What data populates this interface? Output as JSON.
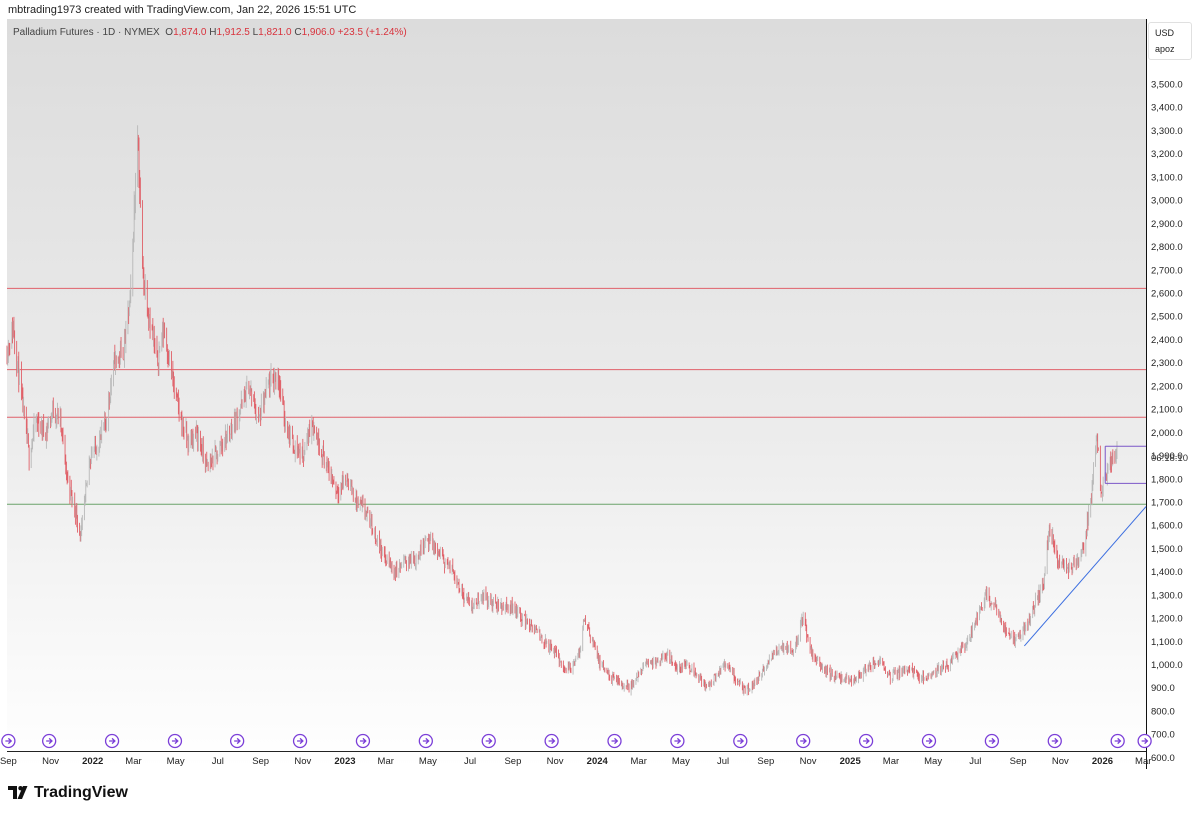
{
  "header": {
    "attribution": "mbtrading1973 created with TradingView.com, Jan 22, 2026 15:51 UTC"
  },
  "legend": {
    "symbol": "Palladium Futures · 1D · NYMEX",
    "o_label": "O",
    "o_value": "1,874.0",
    "h_label": "H",
    "h_value": "1,912.5",
    "l_label": "L",
    "l_value": "1,821.0",
    "c_label": "C",
    "c_value": "1,906.0",
    "change": "+23.5 (+1.24%)"
  },
  "price_scale": {
    "currency": "USD",
    "unit": "apoz",
    "countdown": "06:18:10"
  },
  "brand": {
    "name": "TradingView",
    "logo_icon": "tradingview-logo-icon"
  },
  "colors": {
    "candle": "#e06068",
    "resistance": "#e0606a",
    "support": "#6aa36a",
    "trendline": "#3b6ee0",
    "range": "#7b57c8",
    "event": "#7b3fd8"
  },
  "chart_data": {
    "type": "line",
    "title": "Palladium Futures · 1D · NYMEX",
    "ylim": [
      550,
      3780
    ],
    "y_ticks": [
      600,
      700,
      800,
      900,
      1000,
      1100,
      1200,
      1300,
      1400,
      1500,
      1600,
      1700,
      1800,
      1900,
      2000,
      2100,
      2200,
      2300,
      2400,
      2500,
      2600,
      2700,
      2800,
      2900,
      3000,
      3100,
      3200,
      3300,
      3400,
      3500
    ],
    "y_tick_labels": [
      "600.0",
      "700.0",
      "800.0",
      "900.0",
      "1,000.0",
      "1,100.0",
      "1,200.0",
      "1,300.0",
      "1,400.0",
      "1,500.0",
      "1,600.0",
      "1,700.0",
      "1,800.0",
      "1,900.0",
      "2,000.0",
      "2,100.0",
      "2,200.0",
      "2,300.0",
      "2,400.0",
      "2,500.0",
      "2,600.0",
      "2,700.0",
      "2,800.0",
      "2,900.0",
      "3,000.0",
      "3,100.0",
      "3,200.0",
      "3,300.0",
      "3,400.0",
      "3,500.0"
    ],
    "x_range": [
      "2021-08-30",
      "2026-03-05"
    ],
    "x_ticks": [
      {
        "date": "2021-09-01",
        "label": "Sep",
        "bold": false
      },
      {
        "date": "2021-11-01",
        "label": "Nov",
        "bold": false
      },
      {
        "date": "2022-01-01",
        "label": "2022",
        "bold": true
      },
      {
        "date": "2022-03-01",
        "label": "Mar",
        "bold": false
      },
      {
        "date": "2022-05-01",
        "label": "May",
        "bold": false
      },
      {
        "date": "2022-07-01",
        "label": "Jul",
        "bold": false
      },
      {
        "date": "2022-09-01",
        "label": "Sep",
        "bold": false
      },
      {
        "date": "2022-11-01",
        "label": "Nov",
        "bold": false
      },
      {
        "date": "2023-01-01",
        "label": "2023",
        "bold": true
      },
      {
        "date": "2023-03-01",
        "label": "Mar",
        "bold": false
      },
      {
        "date": "2023-05-01",
        "label": "May",
        "bold": false
      },
      {
        "date": "2023-07-01",
        "label": "Jul",
        "bold": false
      },
      {
        "date": "2023-09-01",
        "label": "Sep",
        "bold": false
      },
      {
        "date": "2023-11-01",
        "label": "Nov",
        "bold": false
      },
      {
        "date": "2024-01-01",
        "label": "2024",
        "bold": true
      },
      {
        "date": "2024-03-01",
        "label": "Mar",
        "bold": false
      },
      {
        "date": "2024-05-01",
        "label": "May",
        "bold": false
      },
      {
        "date": "2024-07-01",
        "label": "Jul",
        "bold": false
      },
      {
        "date": "2024-09-01",
        "label": "Sep",
        "bold": false
      },
      {
        "date": "2024-11-01",
        "label": "Nov",
        "bold": false
      },
      {
        "date": "2025-01-01",
        "label": "2025",
        "bold": true
      },
      {
        "date": "2025-03-01",
        "label": "Mar",
        "bold": false
      },
      {
        "date": "2025-05-01",
        "label": "May",
        "bold": false
      },
      {
        "date": "2025-07-01",
        "label": "Jul",
        "bold": false
      },
      {
        "date": "2025-09-01",
        "label": "Sep",
        "bold": false
      },
      {
        "date": "2025-11-01",
        "label": "Nov",
        "bold": false
      },
      {
        "date": "2026-01-01",
        "label": "2026",
        "bold": true
      },
      {
        "date": "2026-03-01",
        "label": "Mar",
        "bold": false
      }
    ],
    "price_path": [
      {
        "date": "2021-08-30",
        "value": 2350
      },
      {
        "date": "2021-09-08",
        "value": 2450
      },
      {
        "date": "2021-09-20",
        "value": 2150
      },
      {
        "date": "2021-10-01",
        "value": 1900
      },
      {
        "date": "2021-10-11",
        "value": 2050
      },
      {
        "date": "2021-10-25",
        "value": 2000
      },
      {
        "date": "2021-11-05",
        "value": 2100
      },
      {
        "date": "2021-11-15",
        "value": 2050
      },
      {
        "date": "2021-11-25",
        "value": 1800
      },
      {
        "date": "2021-12-08",
        "value": 1650
      },
      {
        "date": "2021-12-15",
        "value": 1550
      },
      {
        "date": "2021-12-28",
        "value": 1900
      },
      {
        "date": "2022-01-10",
        "value": 1950
      },
      {
        "date": "2022-01-20",
        "value": 2050
      },
      {
        "date": "2022-02-01",
        "value": 2300
      },
      {
        "date": "2022-02-15",
        "value": 2350
      },
      {
        "date": "2022-02-25",
        "value": 2600
      },
      {
        "date": "2022-03-07",
        "value": 3300
      },
      {
        "date": "2022-03-14",
        "value": 2700
      },
      {
        "date": "2022-03-24",
        "value": 2500
      },
      {
        "date": "2022-04-04",
        "value": 2300
      },
      {
        "date": "2022-04-14",
        "value": 2450
      },
      {
        "date": "2022-04-28",
        "value": 2200
      },
      {
        "date": "2022-05-09",
        "value": 2050
      },
      {
        "date": "2022-05-20",
        "value": 1950
      },
      {
        "date": "2022-06-01",
        "value": 2000
      },
      {
        "date": "2022-06-15",
        "value": 1850
      },
      {
        "date": "2022-06-28",
        "value": 1900
      },
      {
        "date": "2022-07-07",
        "value": 1950
      },
      {
        "date": "2022-07-18",
        "value": 2000
      },
      {
        "date": "2022-08-02",
        "value": 2100
      },
      {
        "date": "2022-08-15",
        "value": 2200
      },
      {
        "date": "2022-08-29",
        "value": 2050
      },
      {
        "date": "2022-09-12",
        "value": 2200
      },
      {
        "date": "2022-09-26",
        "value": 2250
      },
      {
        "date": "2022-10-06",
        "value": 2050
      },
      {
        "date": "2022-10-18",
        "value": 1950
      },
      {
        "date": "2022-11-01",
        "value": 1900
      },
      {
        "date": "2022-11-14",
        "value": 2050
      },
      {
        "date": "2022-11-25",
        "value": 1950
      },
      {
        "date": "2022-12-06",
        "value": 1850
      },
      {
        "date": "2022-12-20",
        "value": 1750
      },
      {
        "date": "2023-01-04",
        "value": 1800
      },
      {
        "date": "2023-01-18",
        "value": 1700
      },
      {
        "date": "2023-02-01",
        "value": 1650
      },
      {
        "date": "2023-02-15",
        "value": 1550
      },
      {
        "date": "2023-03-01",
        "value": 1450
      },
      {
        "date": "2023-03-15",
        "value": 1400
      },
      {
        "date": "2023-03-30",
        "value": 1450
      },
      {
        "date": "2023-04-14",
        "value": 1450
      },
      {
        "date": "2023-04-28",
        "value": 1550
      },
      {
        "date": "2023-05-10",
        "value": 1500
      },
      {
        "date": "2023-05-24",
        "value": 1450
      },
      {
        "date": "2023-06-07",
        "value": 1400
      },
      {
        "date": "2023-06-21",
        "value": 1300
      },
      {
        "date": "2023-07-05",
        "value": 1250
      },
      {
        "date": "2023-07-19",
        "value": 1300
      },
      {
        "date": "2023-08-02",
        "value": 1260
      },
      {
        "date": "2023-08-16",
        "value": 1250
      },
      {
        "date": "2023-09-01",
        "value": 1250
      },
      {
        "date": "2023-09-15",
        "value": 1200
      },
      {
        "date": "2023-10-02",
        "value": 1150
      },
      {
        "date": "2023-10-16",
        "value": 1100
      },
      {
        "date": "2023-11-01",
        "value": 1050
      },
      {
        "date": "2023-11-15",
        "value": 980
      },
      {
        "date": "2023-11-29",
        "value": 1000
      },
      {
        "date": "2023-12-06",
        "value": 1050
      },
      {
        "date": "2023-12-13",
        "value": 1200
      },
      {
        "date": "2023-12-20",
        "value": 1150
      },
      {
        "date": "2024-01-05",
        "value": 1000
      },
      {
        "date": "2024-01-19",
        "value": 950
      },
      {
        "date": "2024-02-02",
        "value": 920
      },
      {
        "date": "2024-02-16",
        "value": 900
      },
      {
        "date": "2024-03-01",
        "value": 950
      },
      {
        "date": "2024-03-15",
        "value": 1020
      },
      {
        "date": "2024-03-29",
        "value": 1000
      },
      {
        "date": "2024-04-12",
        "value": 1050
      },
      {
        "date": "2024-04-26",
        "value": 980
      },
      {
        "date": "2024-05-10",
        "value": 1000
      },
      {
        "date": "2024-05-24",
        "value": 960
      },
      {
        "date": "2024-06-07",
        "value": 900
      },
      {
        "date": "2024-06-21",
        "value": 950
      },
      {
        "date": "2024-07-05",
        "value": 1000
      },
      {
        "date": "2024-07-19",
        "value": 940
      },
      {
        "date": "2024-08-02",
        "value": 880
      },
      {
        "date": "2024-08-16",
        "value": 920
      },
      {
        "date": "2024-08-30",
        "value": 980
      },
      {
        "date": "2024-09-13",
        "value": 1050
      },
      {
        "date": "2024-09-27",
        "value": 1080
      },
      {
        "date": "2024-10-11",
        "value": 1060
      },
      {
        "date": "2024-10-25",
        "value": 1200
      },
      {
        "date": "2024-11-06",
        "value": 1050
      },
      {
        "date": "2024-11-20",
        "value": 990
      },
      {
        "date": "2024-12-04",
        "value": 960
      },
      {
        "date": "2024-12-18",
        "value": 940
      },
      {
        "date": "2025-01-03",
        "value": 930
      },
      {
        "date": "2025-01-17",
        "value": 960
      },
      {
        "date": "2025-01-31",
        "value": 990
      },
      {
        "date": "2025-02-14",
        "value": 1020
      },
      {
        "date": "2025-02-28",
        "value": 950
      },
      {
        "date": "2025-03-14",
        "value": 970
      },
      {
        "date": "2025-03-28",
        "value": 990
      },
      {
        "date": "2025-04-11",
        "value": 940
      },
      {
        "date": "2025-04-25",
        "value": 950
      },
      {
        "date": "2025-05-09",
        "value": 980
      },
      {
        "date": "2025-05-23",
        "value": 1000
      },
      {
        "date": "2025-06-06",
        "value": 1050
      },
      {
        "date": "2025-06-20",
        "value": 1100
      },
      {
        "date": "2025-07-04",
        "value": 1200
      },
      {
        "date": "2025-07-16",
        "value": 1300
      },
      {
        "date": "2025-07-30",
        "value": 1250
      },
      {
        "date": "2025-08-13",
        "value": 1150
      },
      {
        "date": "2025-08-27",
        "value": 1100
      },
      {
        "date": "2025-09-10",
        "value": 1150
      },
      {
        "date": "2025-09-24",
        "value": 1250
      },
      {
        "date": "2025-10-08",
        "value": 1350
      },
      {
        "date": "2025-10-16",
        "value": 1600
      },
      {
        "date": "2025-10-28",
        "value": 1450
      },
      {
        "date": "2025-11-11",
        "value": 1420
      },
      {
        "date": "2025-11-25",
        "value": 1430
      },
      {
        "date": "2025-12-05",
        "value": 1500
      },
      {
        "date": "2025-12-15",
        "value": 1700
      },
      {
        "date": "2025-12-24",
        "value": 2000
      },
      {
        "date": "2025-12-29",
        "value": 1750
      },
      {
        "date": "2026-01-05",
        "value": 1800
      },
      {
        "date": "2026-01-12",
        "value": 1880
      },
      {
        "date": "2026-01-22",
        "value": 1906
      }
    ],
    "horizontal_levels": [
      {
        "value": 2620,
        "role": "resistance"
      },
      {
        "value": 2270,
        "role": "resistance"
      },
      {
        "value": 2065,
        "role": "resistance"
      },
      {
        "value": 1690,
        "role": "support"
      }
    ],
    "trendline": [
      {
        "date": "2025-09-10",
        "value": 1080
      },
      {
        "date": "2026-03-05",
        "value": 1680
      }
    ],
    "range_box": {
      "start": "2026-01-05",
      "end": "2026-03-05",
      "top": 1940,
      "bottom": 1780
    },
    "event_dates": [
      "2021-09-01",
      "2021-10-30",
      "2022-01-29",
      "2022-04-30",
      "2022-07-29",
      "2022-10-28",
      "2023-01-27",
      "2023-04-28",
      "2023-07-28",
      "2023-10-27",
      "2024-01-26",
      "2024-04-26",
      "2024-07-26",
      "2024-10-25",
      "2025-01-24",
      "2025-04-25",
      "2025-07-25",
      "2025-10-24",
      "2026-01-23",
      "2026-03-03"
    ],
    "event_icon": "arrow-right-circle-icon"
  }
}
